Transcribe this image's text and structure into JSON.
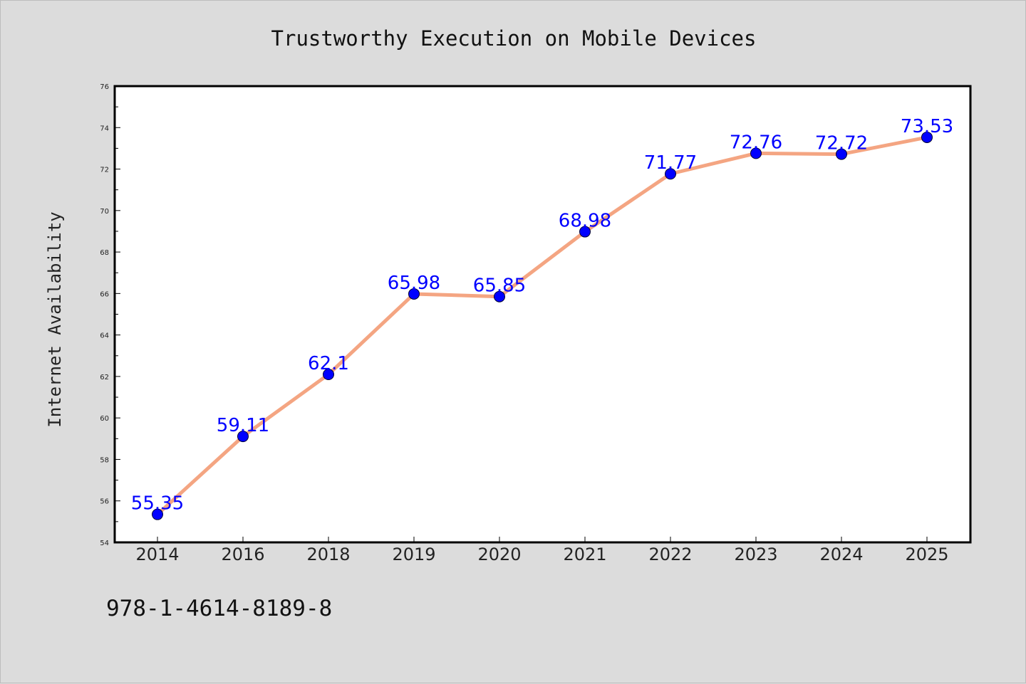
{
  "chart_data": {
    "type": "line",
    "title": "Trustworthy Execution on Mobile Devices",
    "xlabel": "",
    "ylabel": "Internet Availability",
    "categories": [
      "2014",
      "2016",
      "2018",
      "2019",
      "2020",
      "2021",
      "2022",
      "2023",
      "2024",
      "2025"
    ],
    "values": [
      55.35,
      59.11,
      62.1,
      65.98,
      65.85,
      68.98,
      71.77,
      72.76,
      72.72,
      73.53
    ],
    "ylim": [
      54,
      76
    ],
    "yticks": [
      54,
      56,
      58,
      60,
      62,
      64,
      66,
      68,
      70,
      72,
      74,
      76
    ],
    "grid": false,
    "legend": "none",
    "colors": {
      "line": "#f4a582",
      "marker": "#0000ff",
      "label": "#0000ff",
      "background": "#dcdcdc",
      "plot_bg": "#ffffff"
    }
  },
  "footer": {
    "isbn": "978-1-4614-8189-8"
  }
}
